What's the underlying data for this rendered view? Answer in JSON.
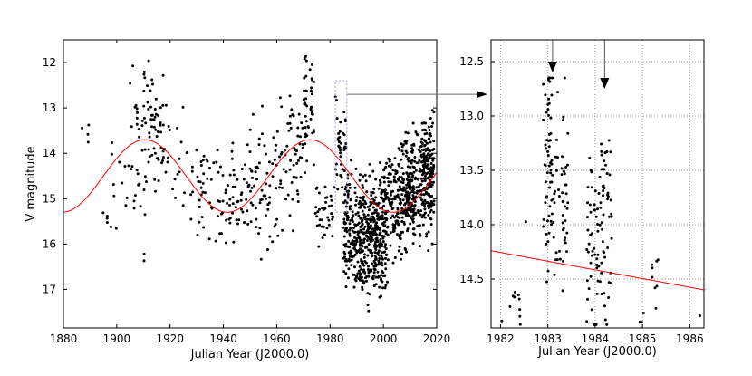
{
  "chart_data": [
    {
      "type": "scatter",
      "panel": "left",
      "xlabel": "Julian Year (J2000.0)",
      "ylabel": "V magnitude",
      "xlim": [
        1880,
        2020
      ],
      "ylim": [
        17.85,
        11.5
      ],
      "y_inverted": true,
      "x_ticks": [
        1880,
        1900,
        1920,
        1940,
        1960,
        1980,
        2000,
        2020
      ],
      "y_ticks": [
        12,
        13,
        14,
        15,
        16,
        17
      ],
      "grid": false,
      "colors": {
        "points": "#000000",
        "fit": "#ff0000",
        "highlight_box": "#b19cd9",
        "arrow": "#555555"
      },
      "series": [
        {
          "kind": "points",
          "clusters": [
            {
              "x_range": [
                1887,
                1890
              ],
              "y_center": 13.5,
              "y_spread": 0.35,
              "count": 4
            },
            {
              "x_range": [
                1890,
                1897
              ],
              "y_center": 15.4,
              "y_spread": 0.15,
              "count": 4
            },
            {
              "x_range": [
                1897,
                1912
              ],
              "y_center": 14.8,
              "y_spread": 0.6,
              "count": 30
            },
            {
              "x_range": [
                1905,
                1918
              ],
              "y_center": 13.5,
              "y_spread": 0.55,
              "count": 60
            },
            {
              "x_range": [
                1910,
                1914
              ],
              "y_center": 12.7,
              "y_spread": 0.3,
              "count": 10
            },
            {
              "x_range": [
                1918,
                1930
              ],
              "y_center": 14.2,
              "y_spread": 0.6,
              "count": 25
            },
            {
              "x_range": [
                1930,
                1950
              ],
              "y_center": 14.9,
              "y_spread": 0.45,
              "count": 90
            },
            {
              "x_range": [
                1950,
                1960
              ],
              "y_center": 14.6,
              "y_spread": 0.7,
              "count": 60
            },
            {
              "x_range": [
                1960,
                1970
              ],
              "y_center": 14.1,
              "y_spread": 0.7,
              "count": 60
            },
            {
              "x_range": [
                1970,
                1974
              ],
              "y_center": 13.0,
              "y_spread": 0.55,
              "count": 45
            },
            {
              "x_range": [
                1974,
                1982
              ],
              "y_center": 15.2,
              "y_spread": 0.35,
              "count": 40
            },
            {
              "x_range": [
                1982,
                1986
              ],
              "y_center": 13.8,
              "y_spread": 0.55,
              "count": 40
            },
            {
              "x_range": [
                1985,
                2000
              ],
              "y_center": 15.7,
              "y_spread": 0.6,
              "count": 380
            },
            {
              "x_range": [
                1990,
                2002
              ],
              "y_center": 16.3,
              "y_spread": 0.45,
              "count": 120
            },
            {
              "x_range": [
                2000,
                2012
              ],
              "y_center": 15.0,
              "y_spread": 0.55,
              "count": 260
            },
            {
              "x_range": [
                2008,
                2019
              ],
              "y_center": 14.7,
              "y_spread": 0.6,
              "count": 240
            },
            {
              "x_range": [
                2014,
                2019
              ],
              "y_center": 14.2,
              "y_spread": 0.5,
              "count": 80
            }
          ]
        },
        {
          "kind": "sinusoid",
          "mean": 14.5,
          "amplitude": 0.8,
          "period_years": 62,
          "peak_x": 1910.5
        }
      ],
      "highlight_box": {
        "x_range": [
          1982,
          1986.3
        ],
        "y_range": [
          12.4,
          15.3
        ]
      }
    },
    {
      "type": "scatter",
      "panel": "right",
      "xlabel": "Julian Year (J2000.0)",
      "xlim": [
        1981.8,
        1986.3
      ],
      "ylim": [
        14.95,
        12.3
      ],
      "y_inverted": true,
      "x_ticks": [
        1982,
        1983,
        1984,
        1985,
        1986
      ],
      "y_ticks": [
        12.5,
        13.0,
        13.5,
        14.0,
        14.5
      ],
      "y_tick_labels": [
        "12.5",
        "13.0",
        "13.5",
        "14.0",
        "14.5"
      ],
      "grid": true,
      "series": [
        {
          "kind": "points",
          "clusters": [
            {
              "x_range": [
                1982.0,
                1982.5
              ],
              "y_center": 14.8,
              "y_spread": 0.1,
              "count": 10
            },
            {
              "x_range": [
                1982.5,
                1982.6
              ],
              "y_center": 13.98,
              "y_spread": 0.02,
              "count": 1
            },
            {
              "x_range": [
                1982.9,
                1983.45
              ],
              "y_center": 13.7,
              "y_spread": 0.45,
              "count": 90
            },
            {
              "x_range": [
                1983.0,
                1983.1
              ],
              "y_center": 13.0,
              "y_spread": 0.3,
              "count": 20
            },
            {
              "x_range": [
                1983.8,
                1984.35
              ],
              "y_center": 14.2,
              "y_spread": 0.45,
              "count": 80
            },
            {
              "x_range": [
                1984.1,
                1984.3
              ],
              "y_center": 13.5,
              "y_spread": 0.25,
              "count": 15
            },
            {
              "x_range": [
                1984.9,
                1985.05
              ],
              "y_center": 14.9,
              "y_spread": 0.05,
              "count": 4
            },
            {
              "x_range": [
                1985.2,
                1985.35
              ],
              "y_center": 14.5,
              "y_spread": 0.2,
              "count": 8
            },
            {
              "x_range": [
                1986.2,
                1986.3
              ],
              "y_center": 14.85,
              "y_spread": 0.03,
              "count": 1
            }
          ]
        },
        {
          "kind": "line",
          "x": [
            1981.8,
            1986.3
          ],
          "y": [
            14.24,
            14.6
          ]
        }
      ],
      "annotation_arrows": [
        {
          "x": 1983.1,
          "y_from": 12.3,
          "y_to": 12.6
        },
        {
          "x": 1984.2,
          "y_from": 12.3,
          "y_to": 12.75
        }
      ]
    }
  ]
}
